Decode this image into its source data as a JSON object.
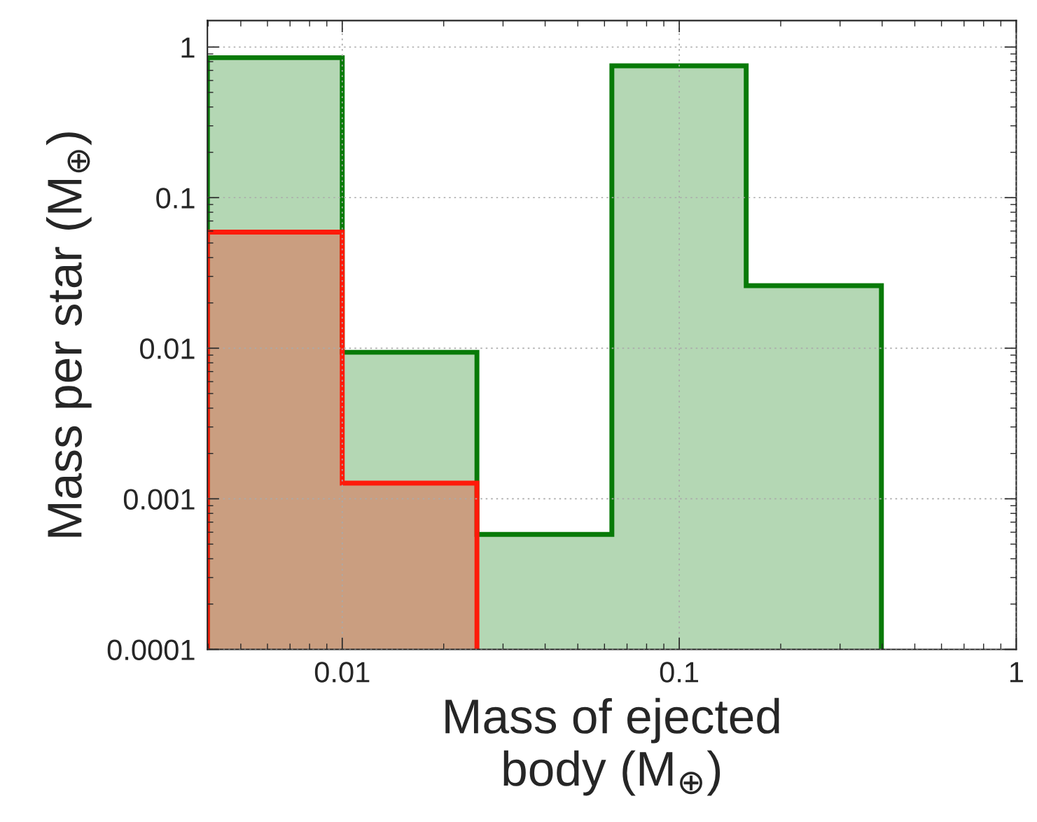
{
  "chart_data": {
    "type": "histogram",
    "xlabel": "Mass of ejected\nbody (M$_{⊕}$)",
    "ylabel": "Mass per star (M$_{⊕}$)",
    "bins": [
      0.00398,
      0.01,
      0.0251,
      0.0631,
      0.158,
      0.398
    ],
    "series": [
      {
        "color": "#087a08",
        "values": [
          0.85,
          0.0094,
          0.00058,
          0.75,
          0.026
        ]
      },
      {
        "color": "#ff1a0a",
        "bins": [
          0.00398,
          0.01,
          0.0251
        ],
        "values": [
          0.059,
          0.00127
        ]
      }
    ],
    "log": "xy",
    "xlim": [
      0.00398,
      1
    ],
    "xticks": [
      0.01,
      0.1,
      1
    ],
    "ylim": [
      0.0001,
      1.5
    ],
    "yticks": [
      0.0001,
      0.001,
      0.01,
      0.1,
      1
    ],
    "grid": true
  }
}
